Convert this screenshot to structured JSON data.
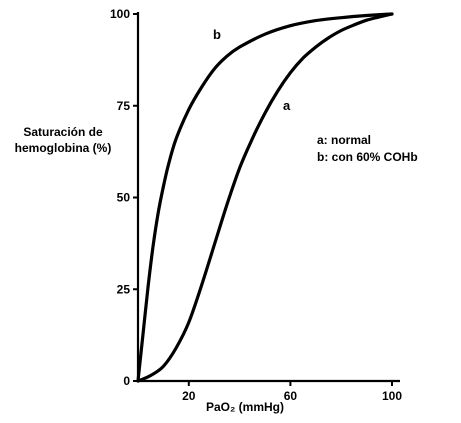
{
  "chart_data": {
    "type": "line",
    "xlabel": "PaO₂ (mmHg)",
    "ylabel_lines": [
      "Saturación de",
      "hemoglobina (%)"
    ],
    "xlim": [
      0,
      100
    ],
    "ylim": [
      0,
      100
    ],
    "xticks": [
      20,
      60,
      100
    ],
    "yticks": [
      0,
      25,
      50,
      75,
      100
    ],
    "grid": false,
    "legend_position": "right",
    "legend": [
      "a: normal",
      "b: con 60% COHb"
    ],
    "series": [
      {
        "name": "a",
        "x": [
          0,
          5,
          10,
          15,
          20,
          25,
          30,
          35,
          40,
          45,
          50,
          55,
          60,
          65,
          70,
          75,
          80,
          85,
          90,
          95,
          100
        ],
        "y": [
          0,
          1.5,
          4,
          9,
          16,
          26,
          37,
          48,
          58,
          66,
          73,
          79,
          84,
          88,
          91,
          93.5,
          95.5,
          97,
          98.3,
          99.2,
          100
        ]
      },
      {
        "name": "b",
        "x": [
          0,
          2,
          4,
          6,
          8,
          10,
          12,
          15,
          20,
          25,
          30,
          35,
          40,
          50,
          60,
          70,
          80,
          90,
          100
        ],
        "y": [
          0,
          13,
          26,
          37,
          46,
          53,
          59,
          66,
          74,
          80,
          85,
          88.5,
          91,
          94.5,
          96.8,
          98.2,
          99,
          99.6,
          100
        ]
      }
    ]
  }
}
